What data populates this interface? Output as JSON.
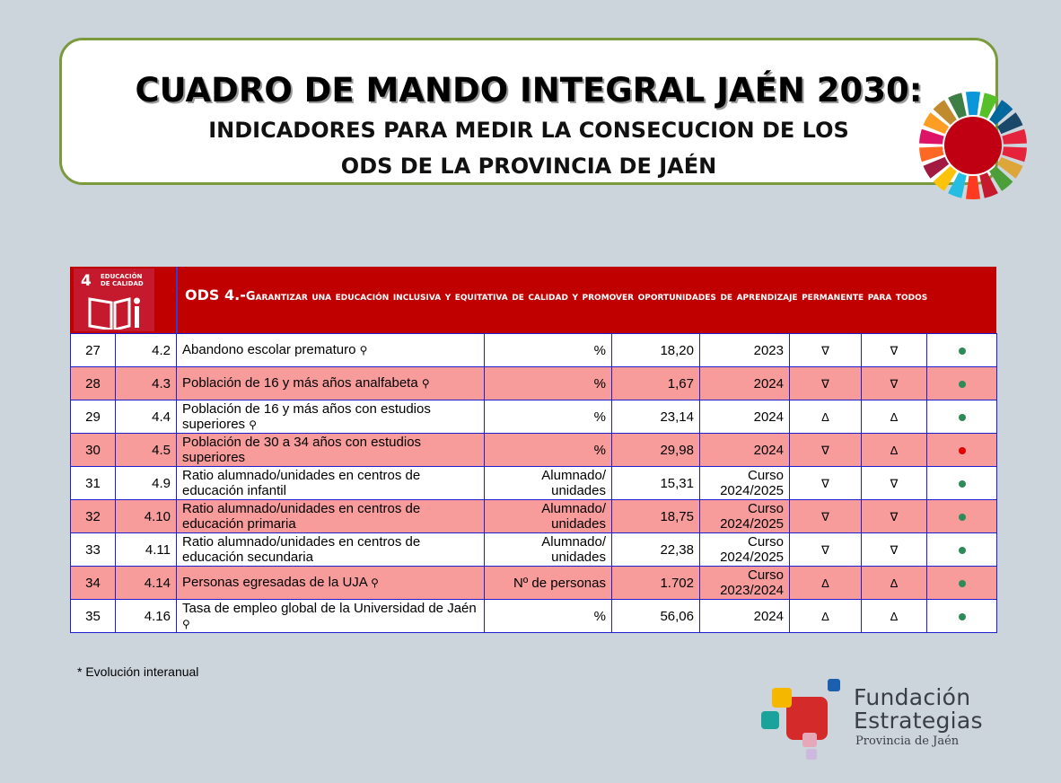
{
  "header": {
    "title_line1": "CUADRO DE MANDO INTEGRAL JAÉN 2030:",
    "title_line2": "INDICADORES PARA MEDIR LA CONSECUCION DE LOS",
    "title_line3": "ODS DE LA PROVINCIA DE JAÉN"
  },
  "goal": {
    "number": "4",
    "name": "EDUCACIÓN DE CALIDAD",
    "lead": "ODS 4.-",
    "title": "Garantizar una educación inclusiva y equitativa de calidad y promover oportunidades de aprendizaje permanente para todos",
    "color": "#c5192d"
  },
  "table": {
    "rows": [
      {
        "num": "27",
        "code": "4.2",
        "name": "Abandono escolar prematuro",
        "gender": "⚲",
        "unit": "%",
        "value": "18,20",
        "year": "2023",
        "trend1": "∇",
        "trend2": "∇",
        "status": "green"
      },
      {
        "num": "28",
        "code": "4.3",
        "name": "Población de 16 y más años analfabeta",
        "gender": "⚲",
        "unit": "%",
        "value": "1,67",
        "year": "2024",
        "trend1": "∇",
        "trend2": "∇",
        "status": "green"
      },
      {
        "num": "29",
        "code": "4.4",
        "name": "Población de 16 y más años con estudios superiores",
        "gender": "⚲",
        "unit": "%",
        "value": "23,14",
        "year": "2024",
        "trend1": "∆",
        "trend2": "∆",
        "status": "green"
      },
      {
        "num": "30",
        "code": "4.5",
        "name": "Población de 30 a 34 años con estudios superiores",
        "gender": "",
        "unit": "%",
        "value": "29,98",
        "year": "2024",
        "trend1": "∇",
        "trend2": "∆",
        "status": "red"
      },
      {
        "num": "31",
        "code": "4.9",
        "name": "Ratio alumnado/unidades en centros de educación infantil",
        "gender": "",
        "unit": "Alumnado/ unidades",
        "value": "15,31",
        "year": "Curso 2024/2025",
        "trend1": "∇",
        "trend2": "∇",
        "status": "green"
      },
      {
        "num": "32",
        "code": "4.10",
        "name": "Ratio alumnado/unidades en centros de educación primaria",
        "gender": "",
        "unit": "Alumnado/ unidades",
        "value": "18,75",
        "year": "Curso 2024/2025",
        "trend1": "∇",
        "trend2": "∇",
        "status": "green"
      },
      {
        "num": "33",
        "code": "4.11",
        "name": "Ratio alumnado/unidades en centros de educación secundaria",
        "gender": "",
        "unit": "Alumnado/ unidades",
        "value": "22,38",
        "year": "Curso 2024/2025",
        "trend1": "∇",
        "trend2": "∇",
        "status": "green"
      },
      {
        "num": "34",
        "code": "4.14",
        "name": "Personas egresadas de la UJA",
        "gender": "⚲",
        "unit": "Nº de personas",
        "value": "1.702",
        "year": "Curso 2023/2024",
        "trend1": "∆",
        "trend2": "∆",
        "status": "green"
      },
      {
        "num": "35",
        "code": "4.16",
        "name": "Tasa de empleo global de la Universidad de Jaén",
        "gender": "⚲",
        "unit": "%",
        "value": "56,06",
        "year": "2024",
        "trend1": "∆",
        "trend2": "∆",
        "status": "green"
      }
    ]
  },
  "status_colors": {
    "green": "#2e8b57",
    "red": "#e00000"
  },
  "footnote": "* Evolución interanual",
  "brand": {
    "line1": "Fundación",
    "line2": "Estrategias",
    "line3": "Provincia de Jaén"
  }
}
